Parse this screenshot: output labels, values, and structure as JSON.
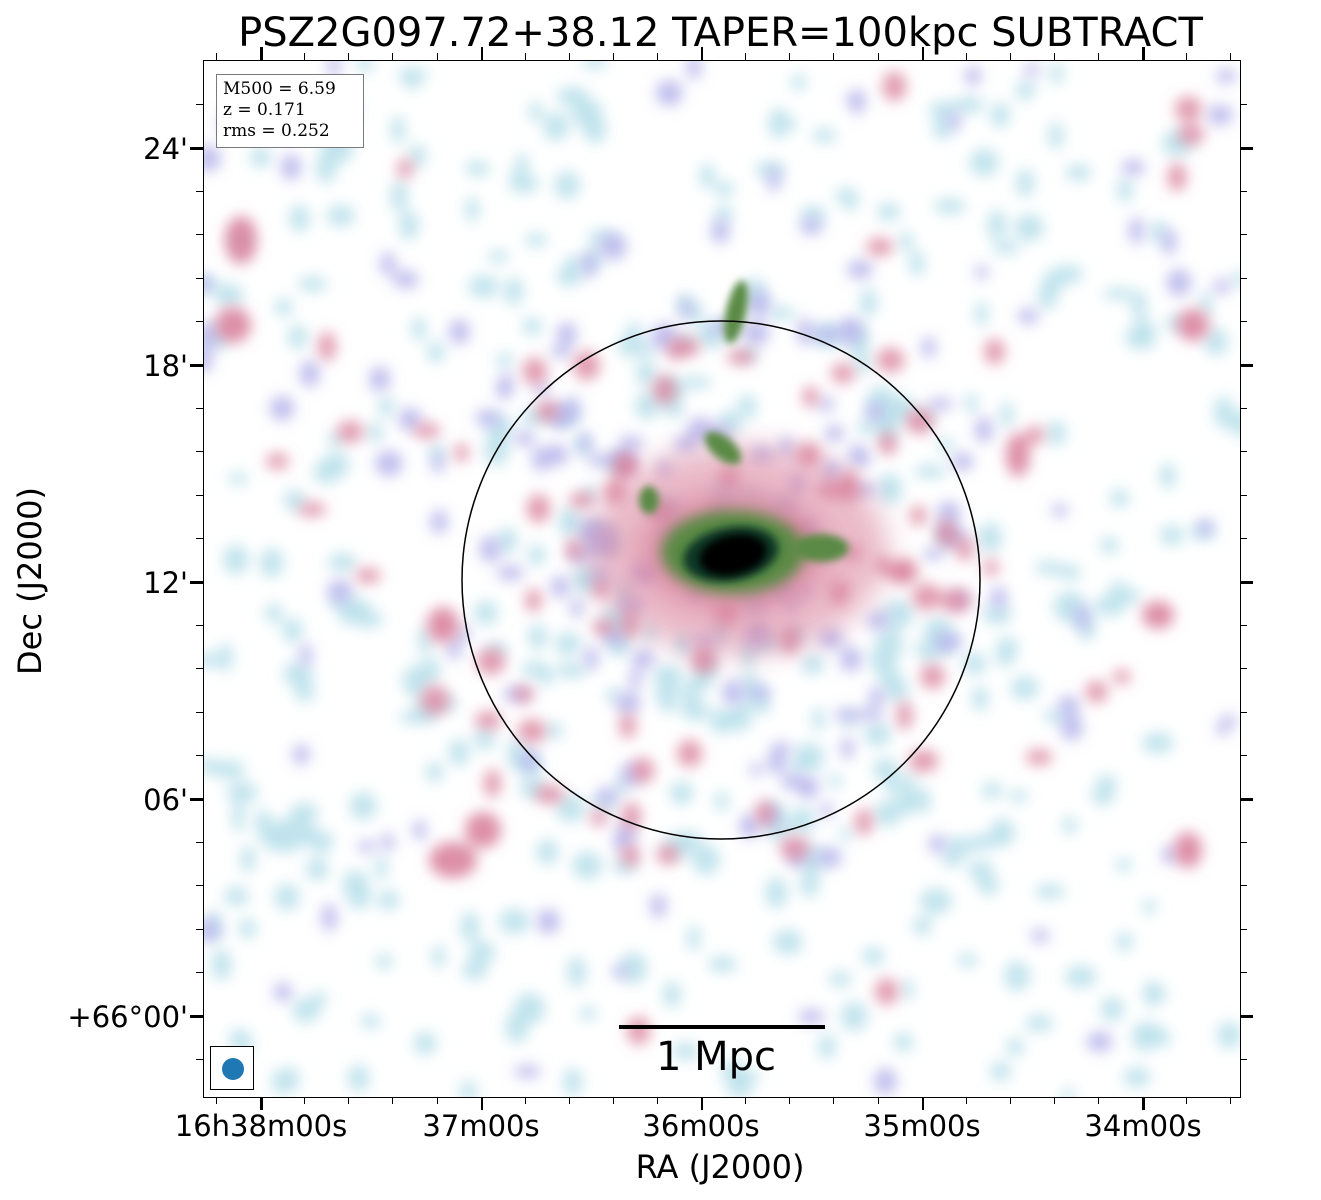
{
  "title": "PSZ2G097.72+38.12 TAPER=100kpc SUBTRACT",
  "info": {
    "m500": "M500 = 6.59",
    "z": "z = 0.171",
    "rms": "rms = 0.252"
  },
  "scalebar": {
    "label": "1 Mpc"
  },
  "axes": {
    "xlabel": "RA (J2000)",
    "ylabel": "Dec (J2000)",
    "xticks": [
      "16h38m00s",
      "37m00s",
      "36m00s",
      "35m00s",
      "34m00s"
    ],
    "yticks": [
      "24'",
      "18'",
      "12'",
      "06'",
      "+66°00'"
    ]
  },
  "colors": {
    "faint": "#bfe3ec",
    "low": "#b9b8ec",
    "mid": "#d9839e",
    "high": "#5a8a44",
    "core": "#000000",
    "beam": "#1f77b4"
  }
}
